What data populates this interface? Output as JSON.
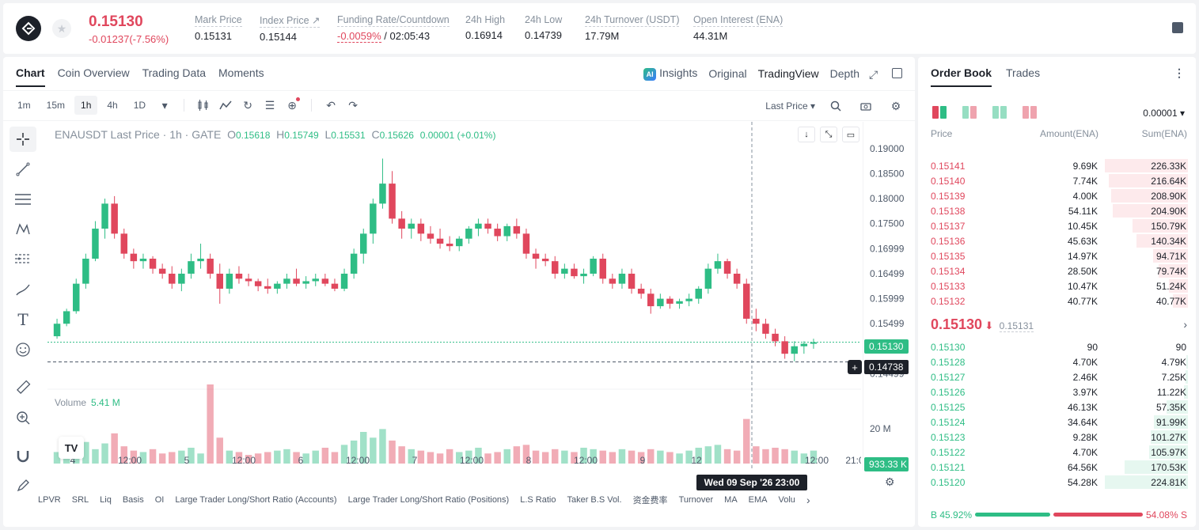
{
  "ticker": {
    "last_price": "0.15130",
    "change": "-0.01237(-7.56%)",
    "mark_price_label": "Mark Price",
    "mark_price": "0.15131",
    "index_price_label": "Index Price ↗",
    "index_price": "0.15144",
    "funding_label": "Funding Rate/Countdown",
    "funding_rate": "-0.0059%",
    "countdown": " / 02:05:43",
    "high_label": "24h High",
    "high": "0.16914",
    "low_label": "24h Low",
    "low": "0.14739",
    "turnover_label": "24h Turnover (USDT)",
    "turnover": "17.79M",
    "oi_label": "Open Interest (ENA)",
    "oi": "44.31M"
  },
  "chart_tabs": [
    "Chart",
    "Coin Overview",
    "Trading Data",
    "Moments"
  ],
  "view_tabs": {
    "insights": "Insights",
    "original": "Original",
    "tradingview": "TradingView",
    "depth": "Depth"
  },
  "timeframes": [
    "1m",
    "15m",
    "1h",
    "4h",
    "1D"
  ],
  "last_price_select": "Last Price ▾",
  "legend": {
    "symbol": "ENAUSDT Last Price · 1h · GATE",
    "o": "0.15618",
    "h": "0.15749",
    "l": "0.15531",
    "c": "0.15626",
    "chg": "0.00001 (+0.01%)"
  },
  "volume": {
    "label": "Volume",
    "value": "5.41 M",
    "tag": "933.33 K",
    "axis": "20 M"
  },
  "price_axis": [
    "0.19000",
    "0.18500",
    "0.18000",
    "0.17500",
    "0.16999",
    "0.16499",
    "0.15999",
    "0.15499",
    "0.14999",
    "0.14499"
  ],
  "price_tag": "0.15130",
  "cross_tag": "0.14738",
  "time_axis": [
    "4",
    "12:00",
    "5",
    "12:00",
    "6",
    "12:00",
    "7",
    "12:00",
    "8",
    "12:00",
    "9",
    "12",
    "12:00",
    "21:0"
  ],
  "crosshair_date": "Wed 09 Sep '26   23:00",
  "indicators": [
    "LPVR",
    "SRL",
    "Liq",
    "Basis",
    "OI",
    "Large Trader Long/Short Ratio (Accounts)",
    "Large Trader Long/Short Ratio (Positions)",
    "L.S Ratio",
    "Taker B.S Vol.",
    "资金费率",
    "Turnover",
    "MA",
    "EMA",
    "Volu"
  ],
  "colors": {
    "up": "#2ebd85",
    "down": "#e0475d"
  },
  "chart_data": {
    "type": "candlestick",
    "y_range": [
      0.1435,
      0.1925
    ],
    "candles": [
      [
        0.1525,
        0.156,
        0.152,
        0.155
      ],
      [
        0.155,
        0.158,
        0.1545,
        0.1575
      ],
      [
        0.1575,
        0.164,
        0.157,
        0.163
      ],
      [
        0.163,
        0.169,
        0.162,
        0.168
      ],
      [
        0.168,
        0.1755,
        0.1675,
        0.174
      ],
      [
        0.174,
        0.18,
        0.172,
        0.179
      ],
      [
        0.179,
        0.1805,
        0.172,
        0.173
      ],
      [
        0.173,
        0.174,
        0.168,
        0.169
      ],
      [
        0.169,
        0.17,
        0.166,
        0.1675
      ],
      [
        0.1675,
        0.169,
        0.166,
        0.168
      ],
      [
        0.168,
        0.1685,
        0.165,
        0.166
      ],
      [
        0.166,
        0.167,
        0.164,
        0.165
      ],
      [
        0.165,
        0.1665,
        0.162,
        0.163
      ],
      [
        0.163,
        0.166,
        0.1615,
        0.165
      ],
      [
        0.165,
        0.169,
        0.164,
        0.1675
      ],
      [
        0.1675,
        0.171,
        0.166,
        0.168
      ],
      [
        0.168,
        0.169,
        0.164,
        0.165
      ],
      [
        0.165,
        0.167,
        0.159,
        0.162
      ],
      [
        0.162,
        0.166,
        0.161,
        0.165
      ],
      [
        0.165,
        0.1665,
        0.163,
        0.164
      ],
      [
        0.164,
        0.165,
        0.1625,
        0.1635
      ],
      [
        0.1635,
        0.164,
        0.1615,
        0.1625
      ],
      [
        0.1625,
        0.164,
        0.161,
        0.162
      ],
      [
        0.162,
        0.1635,
        0.161,
        0.163
      ],
      [
        0.163,
        0.165,
        0.162,
        0.164
      ],
      [
        0.164,
        0.166,
        0.1625,
        0.163
      ],
      [
        0.163,
        0.1645,
        0.162,
        0.1635
      ],
      [
        0.1635,
        0.165,
        0.1625,
        0.164
      ],
      [
        0.164,
        0.165,
        0.1625,
        0.163
      ],
      [
        0.163,
        0.164,
        0.1615,
        0.162
      ],
      [
        0.162,
        0.166,
        0.1615,
        0.165
      ],
      [
        0.165,
        0.17,
        0.164,
        0.169
      ],
      [
        0.169,
        0.174,
        0.167,
        0.173
      ],
      [
        0.173,
        0.18,
        0.171,
        0.179
      ],
      [
        0.179,
        0.188,
        0.178,
        0.183
      ],
      [
        0.183,
        0.1855,
        0.175,
        0.176
      ],
      [
        0.176,
        0.1775,
        0.172,
        0.174
      ],
      [
        0.174,
        0.176,
        0.172,
        0.175
      ],
      [
        0.175,
        0.176,
        0.1715,
        0.173
      ],
      [
        0.173,
        0.1745,
        0.171,
        0.172
      ],
      [
        0.172,
        0.174,
        0.17,
        0.171
      ],
      [
        0.171,
        0.1725,
        0.1695,
        0.1705
      ],
      [
        0.1705,
        0.1725,
        0.1695,
        0.172
      ],
      [
        0.172,
        0.1745,
        0.171,
        0.174
      ],
      [
        0.174,
        0.176,
        0.1725,
        0.175
      ],
      [
        0.175,
        0.176,
        0.173,
        0.174
      ],
      [
        0.174,
        0.175,
        0.1715,
        0.1725
      ],
      [
        0.1725,
        0.175,
        0.1715,
        0.1745
      ],
      [
        0.1745,
        0.176,
        0.172,
        0.173
      ],
      [
        0.173,
        0.174,
        0.168,
        0.169
      ],
      [
        0.169,
        0.17,
        0.166,
        0.168
      ],
      [
        0.168,
        0.169,
        0.1665,
        0.1675
      ],
      [
        0.1675,
        0.1685,
        0.164,
        0.165
      ],
      [
        0.165,
        0.167,
        0.164,
        0.166
      ],
      [
        0.166,
        0.167,
        0.164,
        0.1645
      ],
      [
        0.1645,
        0.166,
        0.163,
        0.165
      ],
      [
        0.165,
        0.1685,
        0.1645,
        0.168
      ],
      [
        0.168,
        0.169,
        0.163,
        0.164
      ],
      [
        0.164,
        0.165,
        0.162,
        0.163
      ],
      [
        0.163,
        0.166,
        0.162,
        0.165
      ],
      [
        0.165,
        0.166,
        0.161,
        0.162
      ],
      [
        0.162,
        0.163,
        0.16,
        0.161
      ],
      [
        0.161,
        0.162,
        0.157,
        0.1585
      ],
      [
        0.1585,
        0.161,
        0.158,
        0.16
      ],
      [
        0.16,
        0.1605,
        0.158,
        0.159
      ],
      [
        0.159,
        0.16,
        0.158,
        0.1595
      ],
      [
        0.1595,
        0.161,
        0.1585,
        0.16
      ],
      [
        0.16,
        0.1625,
        0.159,
        0.162
      ],
      [
        0.162,
        0.167,
        0.161,
        0.166
      ],
      [
        0.166,
        0.169,
        0.165,
        0.1675
      ],
      [
        0.1675,
        0.168,
        0.164,
        0.165
      ],
      [
        0.165,
        0.166,
        0.162,
        0.163
      ],
      [
        0.163,
        0.164,
        0.155,
        0.156
      ],
      [
        0.156,
        0.158,
        0.1535,
        0.155
      ],
      [
        0.155,
        0.156,
        0.152,
        0.153
      ],
      [
        0.153,
        0.154,
        0.1505,
        0.1515
      ],
      [
        0.1515,
        0.1525,
        0.148,
        0.149
      ],
      [
        0.149,
        0.1515,
        0.1475,
        0.1505
      ],
      [
        0.1505,
        0.1515,
        0.149,
        0.151
      ],
      [
        0.151,
        0.152,
        0.15,
        0.1513
      ]
    ],
    "volumes": [
      0.8,
      0.9,
      1.2,
      1.5,
      1.0,
      1.4,
      2.1,
      1.2,
      0.9,
      0.8,
      1.0,
      0.7,
      0.8,
      0.9,
      1.1,
      0.7,
      5.5,
      1.8,
      0.9,
      0.8,
      0.6,
      0.7,
      0.8,
      0.9,
      1.0,
      0.8,
      0.7,
      0.9,
      1.1,
      0.8,
      1.3,
      1.6,
      2.2,
      1.8,
      2.4,
      1.6,
      1.2,
      1.0,
      0.9,
      0.8,
      0.7,
      1.0,
      0.8,
      0.9,
      1.1,
      0.7,
      0.8,
      1.0,
      1.2,
      1.3,
      0.9,
      0.8,
      1.0,
      0.9,
      0.8,
      1.1,
      1.0,
      0.9,
      0.8,
      1.0,
      0.9,
      0.8,
      1.0,
      0.9,
      0.8,
      0.7,
      0.9,
      1.1,
      1.2,
      1.3,
      1.0,
      0.9,
      3.1,
      1.2,
      1.0,
      1.1,
      1.0,
      0.9,
      0.7,
      0.9
    ]
  },
  "orderbook": {
    "tabs": [
      "Order Book",
      "Trades"
    ],
    "precision": "0.00001 ▾",
    "head": {
      "price": "Price",
      "amount": "Amount(ENA)",
      "sum": "Sum(ENA)"
    },
    "asks": [
      {
        "p": "0.15141",
        "a": "9.69K",
        "s": "226.33K",
        "w": 1.0
      },
      {
        "p": "0.15140",
        "a": "7.74K",
        "s": "216.64K",
        "w": 0.957
      },
      {
        "p": "0.15139",
        "a": "4.00K",
        "s": "208.90K",
        "w": 0.923
      },
      {
        "p": "0.15138",
        "a": "54.11K",
        "s": "204.90K",
        "w": 0.905
      },
      {
        "p": "0.15137",
        "a": "10.45K",
        "s": "150.79K",
        "w": 0.666
      },
      {
        "p": "0.15136",
        "a": "45.63K",
        "s": "140.34K",
        "w": 0.62
      },
      {
        "p": "0.15135",
        "a": "14.97K",
        "s": "94.71K",
        "w": 0.418
      },
      {
        "p": "0.15134",
        "a": "28.50K",
        "s": "79.74K",
        "w": 0.352
      },
      {
        "p": "0.15133",
        "a": "10.47K",
        "s": "51.24K",
        "w": 0.226
      },
      {
        "p": "0.15132",
        "a": "40.77K",
        "s": "40.77K",
        "w": 0.18
      }
    ],
    "mid": {
      "price": "0.15130",
      "arrow": "⬇",
      "mark": "0.15131"
    },
    "bids": [
      {
        "p": "0.15130",
        "a": "90",
        "s": "90",
        "w": 0.0
      },
      {
        "p": "0.15128",
        "a": "4.70K",
        "s": "4.79K",
        "w": 0.021
      },
      {
        "p": "0.15127",
        "a": "2.46K",
        "s": "7.25K",
        "w": 0.032
      },
      {
        "p": "0.15126",
        "a": "3.97K",
        "s": "11.22K",
        "w": 0.05
      },
      {
        "p": "0.15125",
        "a": "46.13K",
        "s": "57.35K",
        "w": 0.255
      },
      {
        "p": "0.15124",
        "a": "34.64K",
        "s": "91.99K",
        "w": 0.409
      },
      {
        "p": "0.15123",
        "a": "9.28K",
        "s": "101.27K",
        "w": 0.45
      },
      {
        "p": "0.15122",
        "a": "4.70K",
        "s": "105.97K",
        "w": 0.471
      },
      {
        "p": "0.15121",
        "a": "64.56K",
        "s": "170.53K",
        "w": 0.758
      },
      {
        "p": "0.15120",
        "a": "54.28K",
        "s": "224.81K",
        "w": 1.0
      }
    ],
    "buy_ratio": "B 45.92%",
    "sell_ratio": "54.08% S",
    "buy_fraction": 0.4592
  }
}
